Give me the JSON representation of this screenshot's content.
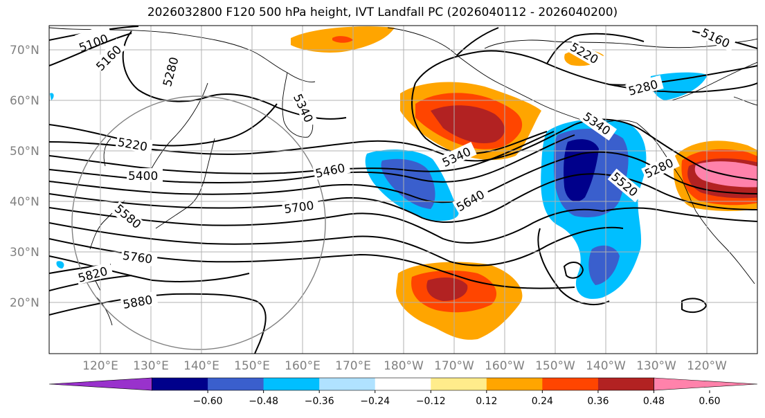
{
  "title": "2026032800 F120 500 hPa height, IVT Landfall PC (2026040112 - 2026040200)",
  "map": {
    "lat_labels": [
      "70°N",
      "60°N",
      "50°N",
      "40°N",
      "30°N",
      "20°N"
    ],
    "lon_labels": [
      "120°E",
      "130°E",
      "140°E",
      "150°E",
      "160°E",
      "170°E",
      "180°W",
      "170°W",
      "160°W",
      "150°W",
      "140°W",
      "130°W",
      "120°W"
    ],
    "height_contour_labels": [
      "5100",
      "5160",
      "5280",
      "5340",
      "5220",
      "5400",
      "5460",
      "5580",
      "5700",
      "5760",
      "5640",
      "5820",
      "5880",
      "5220",
      "5160",
      "5280",
      "5340",
      "5280",
      "5520"
    ],
    "grid_color": "#b0b0b0",
    "coast_color": "#000000"
  },
  "colorbar": {
    "ticks": [
      "−0.60",
      "−0.48",
      "−0.36",
      "−0.24",
      "−0.12",
      "0.12",
      "0.24",
      "0.36",
      "0.48",
      "0.60"
    ],
    "colors": [
      "#9932cc",
      "#00008b",
      "#3a5fcd",
      "#00bfff",
      "#b0e2ff",
      "#ffffff",
      "#ffec8b",
      "#ffa500",
      "#ff4500",
      "#b22222",
      "#ff82ab"
    ]
  }
}
